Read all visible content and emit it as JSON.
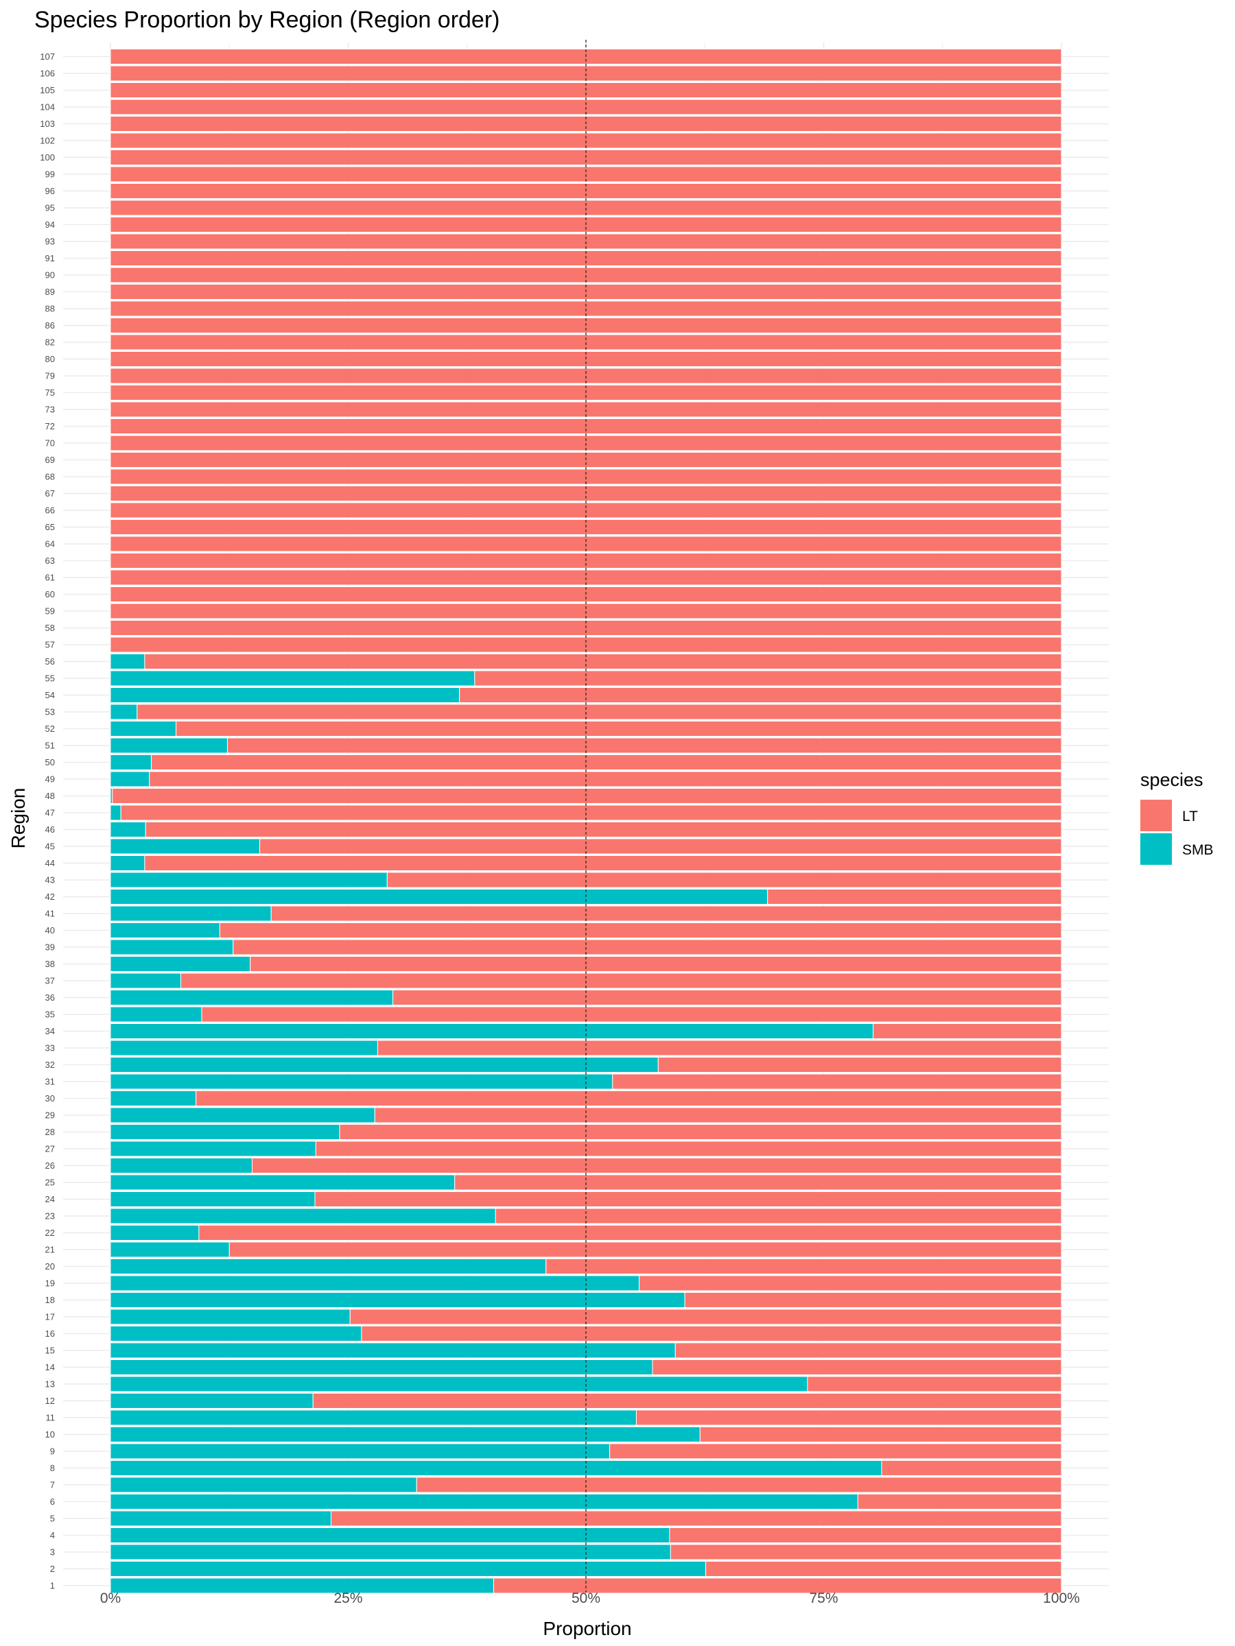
{
  "chart_data": {
    "type": "bar",
    "orientation": "horizontal",
    "stacked": "proportion",
    "title": "Species Proportion by Region (Region order)",
    "xlabel": "Proportion",
    "ylabel": "Region",
    "xlim": [
      0,
      1
    ],
    "x_ticks": [
      "0%",
      "25%",
      "50%",
      "75%",
      "100%"
    ],
    "reference_line": {
      "x": 0.5,
      "style": "dashed"
    },
    "grid": true,
    "legend": {
      "title": "species",
      "position": "right"
    },
    "categories": [
      "1",
      "2",
      "3",
      "4",
      "5",
      "6",
      "7",
      "8",
      "9",
      "10",
      "11",
      "12",
      "13",
      "14",
      "15",
      "16",
      "17",
      "18",
      "19",
      "20",
      "21",
      "22",
      "23",
      "24",
      "25",
      "26",
      "27",
      "28",
      "29",
      "30",
      "31",
      "32",
      "33",
      "34",
      "35",
      "36",
      "37",
      "38",
      "39",
      "40",
      "41",
      "42",
      "43",
      "44",
      "45",
      "46",
      "47",
      "48",
      "49",
      "50",
      "51",
      "52",
      "53",
      "54",
      "55",
      "56",
      "57",
      "58",
      "59",
      "60",
      "61",
      "63",
      "64",
      "65",
      "66",
      "67",
      "68",
      "69",
      "70",
      "72",
      "73",
      "75",
      "79",
      "80",
      "82",
      "86",
      "88",
      "89",
      "90",
      "91",
      "93",
      "94",
      "95",
      "96",
      "99",
      "100",
      "102",
      "103",
      "104",
      "105",
      "106",
      "107"
    ],
    "series": [
      {
        "name": "SMB",
        "color": "#00BFC4",
        "values": [
          0.403,
          0.626,
          0.589,
          0.588,
          0.232,
          0.786,
          0.322,
          0.811,
          0.525,
          0.62,
          0.553,
          0.213,
          0.733,
          0.57,
          0.594,
          0.264,
          0.252,
          0.604,
          0.556,
          0.458,
          0.125,
          0.093,
          0.405,
          0.215,
          0.362,
          0.149,
          0.216,
          0.241,
          0.278,
          0.09,
          0.528,
          0.576,
          0.281,
          0.802,
          0.096,
          0.297,
          0.074,
          0.147,
          0.129,
          0.115,
          0.169,
          0.691,
          0.291,
          0.036,
          0.157,
          0.037,
          0.011,
          0.002,
          0.041,
          0.043,
          0.123,
          0.069,
          0.028,
          0.367,
          0.383,
          0.036,
          0,
          0,
          0,
          0,
          0,
          0,
          0,
          0,
          0,
          0,
          0,
          0,
          0,
          0,
          0,
          0,
          0,
          0,
          0,
          0,
          0,
          0,
          0,
          0,
          0,
          0,
          0,
          0,
          0,
          0,
          0,
          0,
          0,
          0,
          0,
          0
        ]
      },
      {
        "name": "LT",
        "color": "#F8766D",
        "values": [
          0.597,
          0.374,
          0.411,
          0.412,
          0.768,
          0.214,
          0.678,
          0.189,
          0.475,
          0.38,
          0.447,
          0.787,
          0.267,
          0.43,
          0.406,
          0.736,
          0.748,
          0.396,
          0.444,
          0.542,
          0.875,
          0.907,
          0.595,
          0.785,
          0.638,
          0.851,
          0.784,
          0.759,
          0.722,
          0.91,
          0.472,
          0.424,
          0.719,
          0.198,
          0.904,
          0.703,
          0.926,
          0.853,
          0.871,
          0.885,
          0.831,
          0.309,
          0.709,
          0.964,
          0.843,
          0.963,
          0.989,
          0.998,
          0.959,
          0.957,
          0.877,
          0.931,
          0.972,
          0.633,
          0.617,
          0.964,
          1,
          1,
          1,
          1,
          1,
          1,
          1,
          1,
          1,
          1,
          1,
          1,
          1,
          1,
          1,
          1,
          1,
          1,
          1,
          1,
          1,
          1,
          1,
          1,
          1,
          1,
          1,
          1,
          1,
          1,
          1,
          1,
          1,
          1,
          1,
          1
        ]
      }
    ]
  }
}
